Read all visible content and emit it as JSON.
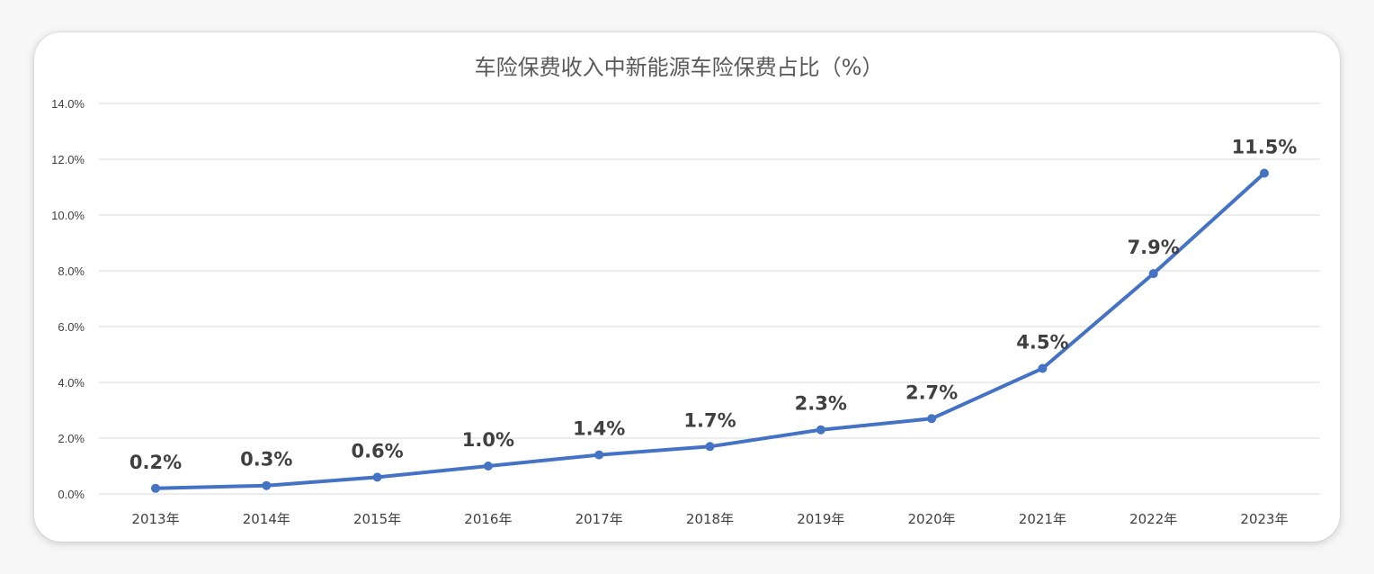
{
  "chart_data": {
    "type": "line",
    "title": "车险保费收入中新能源车险保费占比（%）",
    "xlabel": "",
    "ylabel": "",
    "categories": [
      "2013年",
      "2014年",
      "2015年",
      "2016年",
      "2017年",
      "2018年",
      "2019年",
      "2020年",
      "2021年",
      "2022年",
      "2023年"
    ],
    "series": [
      {
        "values": [
          0.2,
          0.3,
          0.6,
          1.0,
          1.4,
          1.7,
          2.3,
          2.7,
          4.5,
          7.9,
          11.5
        ],
        "data_labels": [
          "0.2%",
          "0.3%",
          "0.6%",
          "1.0%",
          "1.4%",
          "1.7%",
          "2.3%",
          "2.7%",
          "4.5%",
          "7.9%",
          "11.5%"
        ],
        "color": "#4472C4"
      }
    ],
    "ylim": [
      0,
      14
    ],
    "yticks": [
      0,
      2,
      4,
      6,
      8,
      10,
      12,
      14
    ],
    "ytick_labels": [
      "0.0%",
      "2.0%",
      "4.0%",
      "6.0%",
      "8.0%",
      "10.0%",
      "12.0%",
      "14.0%"
    ],
    "grid": "horizontal",
    "legend": "none",
    "colors": {
      "line": "#4472C4",
      "grid": "#d9d9d9",
      "text": "#404040"
    }
  }
}
